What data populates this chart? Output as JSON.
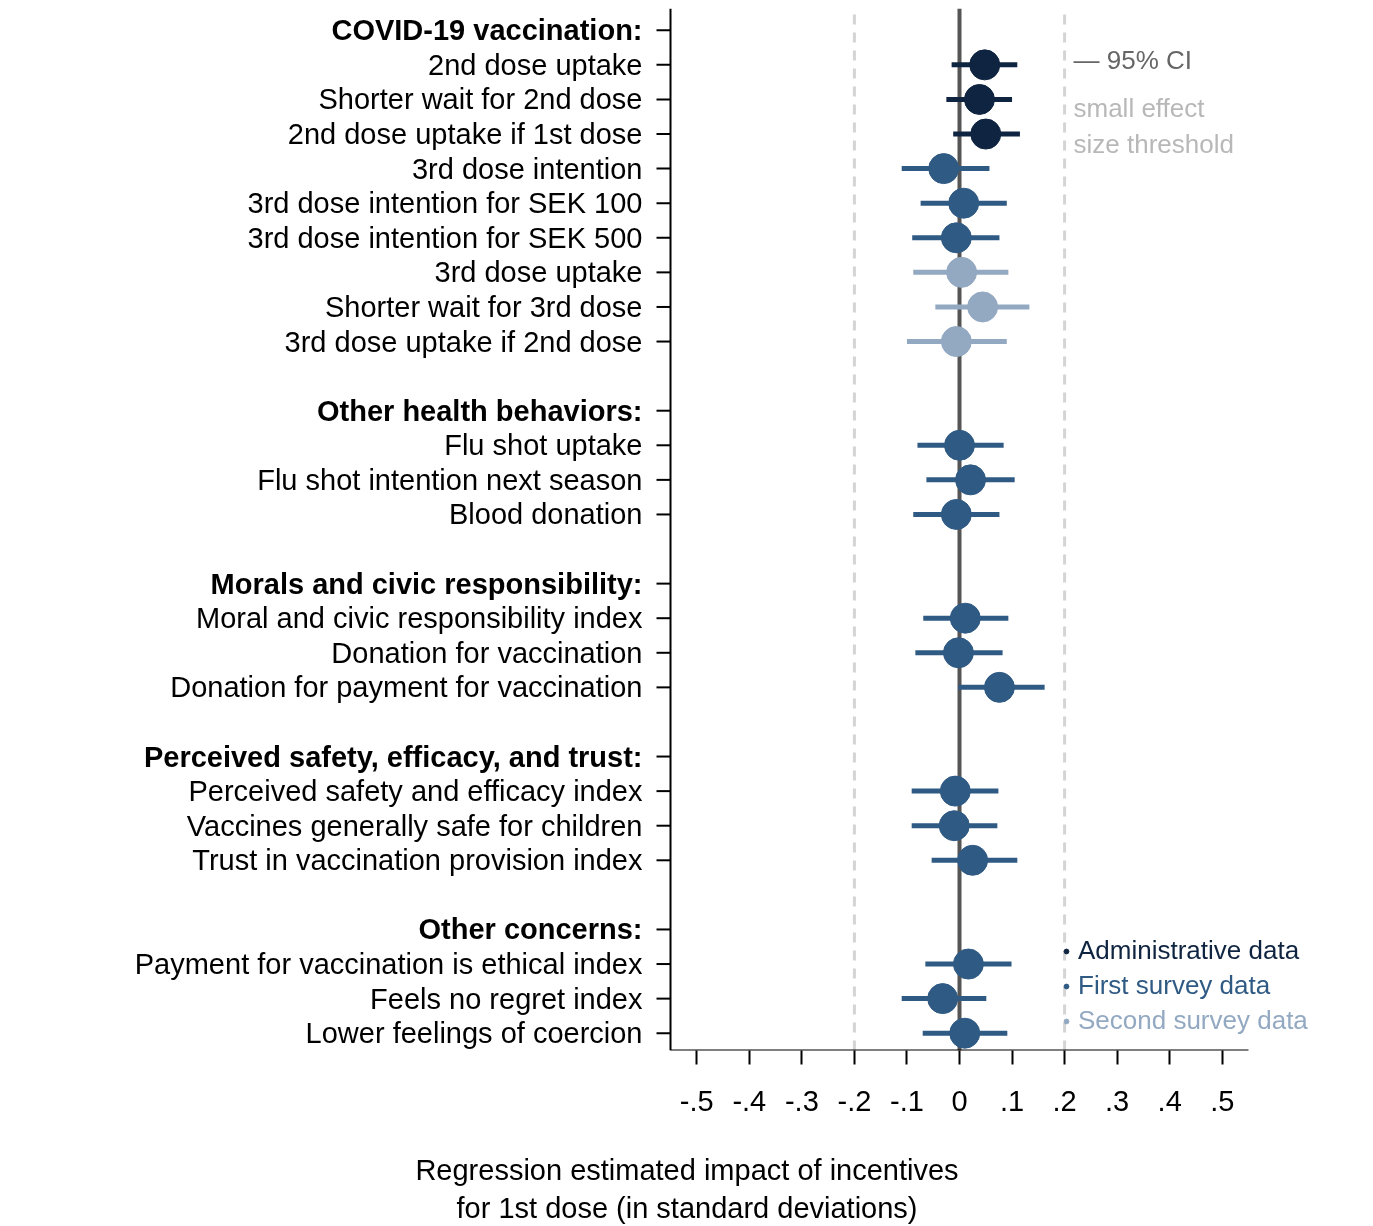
{
  "chart_data": {
    "type": "scatter",
    "orientation": "horizontal",
    "xlabel": "Regression estimated impact of incentives\nfor 1st dose (in standard deviations)",
    "categories": [
      null,
      "2nd dose uptake",
      "Shorter wait for 2nd dose",
      "2nd dose uptake if 1st dose",
      "3rd dose intention",
      "3rd dose intention for SEK 100",
      "3rd dose intention for SEK 500",
      "3rd dose uptake",
      "Shorter wait for 3rd dose",
      "3rd dose uptake if 2nd dose",
      null,
      null,
      "Flu shot uptake",
      "Flu shot intention next season",
      "Blood donation",
      null,
      null,
      "Moral and civic responsibility index",
      "Donation for vaccination",
      "Donation for payment for vaccination",
      null,
      null,
      "Perceived safety and efficacy index",
      "Vaccines generally safe for children",
      "Trust in vaccination provision index",
      null,
      null,
      "Payment for vaccination is ethical index",
      "Feels no regret index",
      "Lower feelings of coercion"
    ],
    "series": [
      {
        "name": "Administrative data",
        "color": "#0f2440",
        "values": [
          null,
          0.048,
          0.038,
          0.05,
          null,
          null,
          null,
          null,
          null,
          null,
          null,
          null,
          null,
          null,
          null,
          null,
          null,
          null,
          null,
          null,
          null,
          null,
          null,
          null,
          null,
          null,
          null,
          null,
          null,
          null
        ],
        "errors": [
          null,
          [
            -0.015,
            0.11
          ],
          [
            -0.025,
            0.1
          ],
          [
            -0.012,
            0.115
          ],
          null,
          null,
          null,
          null,
          null,
          null,
          null,
          null,
          null,
          null,
          null,
          null,
          null,
          null,
          null,
          null,
          null,
          null,
          null,
          null,
          null,
          null,
          null,
          null,
          null,
          null
        ]
      },
      {
        "name": "First survey data",
        "color": "#2f5a84",
        "values": [
          null,
          null,
          null,
          null,
          -0.03,
          0.008,
          -0.006,
          null,
          null,
          null,
          null,
          null,
          0.0,
          0.021,
          -0.006,
          null,
          null,
          0.011,
          -0.002,
          0.076,
          null,
          null,
          -0.008,
          -0.01,
          0.025,
          null,
          null,
          0.017,
          -0.032,
          0.01
        ],
        "errors": [
          null,
          null,
          null,
          null,
          [
            -0.11,
            0.057
          ],
          [
            -0.074,
            0.09
          ],
          [
            -0.09,
            0.076
          ],
          null,
          null,
          null,
          null,
          null,
          [
            -0.08,
            0.084
          ],
          [
            -0.063,
            0.105
          ],
          [
            -0.088,
            0.076
          ],
          null,
          null,
          [
            -0.069,
            0.093
          ],
          [
            -0.084,
            0.082
          ],
          [
            -0.002,
            0.162
          ],
          null,
          null,
          [
            -0.091,
            0.074
          ],
          [
            -0.091,
            0.072
          ],
          [
            -0.053,
            0.11
          ],
          null,
          null,
          [
            -0.065,
            0.099
          ],
          [
            -0.11,
            0.051
          ],
          [
            -0.07,
            0.091
          ]
        ]
      },
      {
        "name": "Second survey data",
        "color": "#93a9c2",
        "values": [
          null,
          null,
          null,
          null,
          null,
          null,
          null,
          0.004,
          0.044,
          -0.006,
          null,
          null,
          null,
          null,
          null,
          null,
          null,
          null,
          null,
          null,
          null,
          null,
          null,
          null,
          null,
          null,
          null,
          null,
          null,
          null
        ],
        "errors": [
          null,
          null,
          null,
          null,
          null,
          null,
          null,
          [
            -0.088,
            0.093
          ],
          [
            -0.046,
            0.133
          ],
          [
            -0.1,
            0.09
          ],
          null,
          null,
          null,
          null,
          null,
          null,
          null,
          null,
          null,
          null,
          null,
          null,
          null,
          null,
          null,
          null,
          null,
          null,
          null,
          null
        ]
      }
    ],
    "xlim": [
      -0.55,
      0.55
    ],
    "xticks": [
      {
        "value": -0.5,
        "label": "-.5"
      },
      {
        "value": -0.4,
        "label": "-.4"
      },
      {
        "value": -0.3,
        "label": "-.3"
      },
      {
        "value": -0.2,
        "label": "-.2"
      },
      {
        "value": -0.1,
        "label": "-.1"
      },
      0,
      {
        "value": 0.1,
        "label": ".1"
      },
      {
        "value": 0.2,
        "label": ".2"
      },
      {
        "value": 0.3,
        "label": ".3"
      },
      {
        "value": 0.4,
        "label": ".4"
      },
      {
        "value": 0.5,
        "label": ".5"
      }
    ],
    "ref_lines": [
      {
        "axis": "x",
        "value": 0,
        "color": "#555555",
        "line_style": "solid"
      },
      {
        "axis": "x",
        "value": -0.2,
        "color": "#d4d4d4",
        "line_style": "dashed"
      },
      {
        "axis": "x",
        "value": 0.2,
        "color": "#d4d4d4",
        "line_style": "dashed"
      }
    ],
    "annotations": [
      "COVID-19 vaccination:",
      "Other health behaviors:",
      "Morals and civic responsibility:",
      "Perceived safety, efficacy, and trust:",
      "Other concerns:",
      "— 95% CI",
      "small effect\nsize threshold"
    ],
    "marker": "circle",
    "grid": false,
    "legend": "bottom right"
  }
}
